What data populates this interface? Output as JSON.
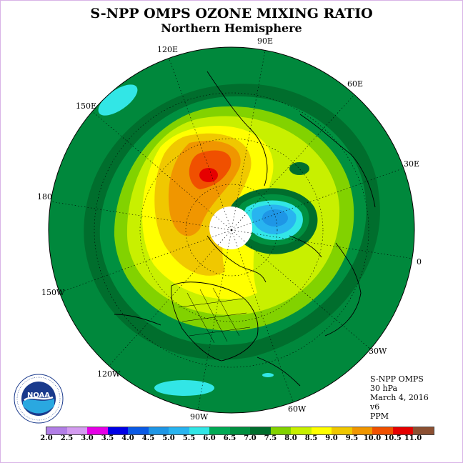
{
  "title": "S-NPP OMPS OZONE MIXING RATIO",
  "subtitle": "Northern Hemisphere",
  "map": {
    "projection": "north-polar-stereographic",
    "longitude_labels": [
      "90E",
      "60E",
      "30E",
      "0",
      "30W",
      "60W",
      "90W",
      "120W",
      "150W",
      "180",
      "150E",
      "120E"
    ],
    "no_data_region": "polar night (white disk)"
  },
  "info": {
    "instrument": "S-NPP OMPS",
    "level": "30 hPa",
    "date": "March 4, 2016",
    "version": "v6",
    "units": "PPM"
  },
  "logo": {
    "text": "NOAA"
  },
  "colorbar": {
    "ticks": [
      "2.0",
      "2.5",
      "3.0",
      "3.5",
      "4.0",
      "4.5",
      "5.0",
      "5.5",
      "6.0",
      "6.5",
      "7.0",
      "7.5",
      "8.0",
      "8.5",
      "9.0",
      "9.5",
      "10.0",
      "10.5",
      "11.0"
    ],
    "colors": [
      "#b27ee6",
      "#d49cf0",
      "#e600e6",
      "#0000e6",
      "#0a5ae6",
      "#1e96e6",
      "#28b4f0",
      "#32e6e6",
      "#00aa55",
      "#009040",
      "#006e2d",
      "#82d200",
      "#c8f000",
      "#ffff00",
      "#f0c800",
      "#f09600",
      "#f05000",
      "#e60000",
      "#8c5032"
    ]
  },
  "legend_colors": {
    "ocean_base": "#00883c",
    "dark_band": "#006e2d",
    "mid_green": "#009040",
    "lime": "#82d200",
    "yellow_green": "#c8f000",
    "yellow": "#ffff00",
    "gold": "#f0c800",
    "orange": "#f09600",
    "red_orange": "#f05000",
    "red": "#e60000",
    "cyan": "#32e6e6",
    "light_blue": "#28b4f0",
    "blue": "#1e96e6"
  }
}
